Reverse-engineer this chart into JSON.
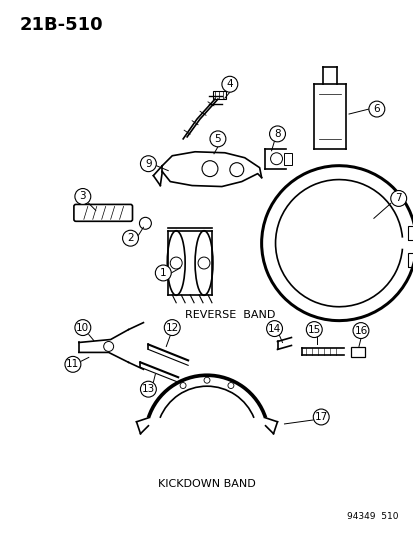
{
  "title": "21B-510",
  "bg_color": "#ffffff",
  "line_color": "#000000",
  "label_color": "#000000",
  "reverse_band_label": "REVERSE  BAND",
  "kickdown_band_label": "KICKDOWN BAND",
  "catalog_number": "94349  510",
  "title_fontsize": 13,
  "label_fontsize": 8,
  "parts_fontsize": 7.5,
  "figsize": [
    4.14,
    5.33
  ],
  "dpi": 100
}
